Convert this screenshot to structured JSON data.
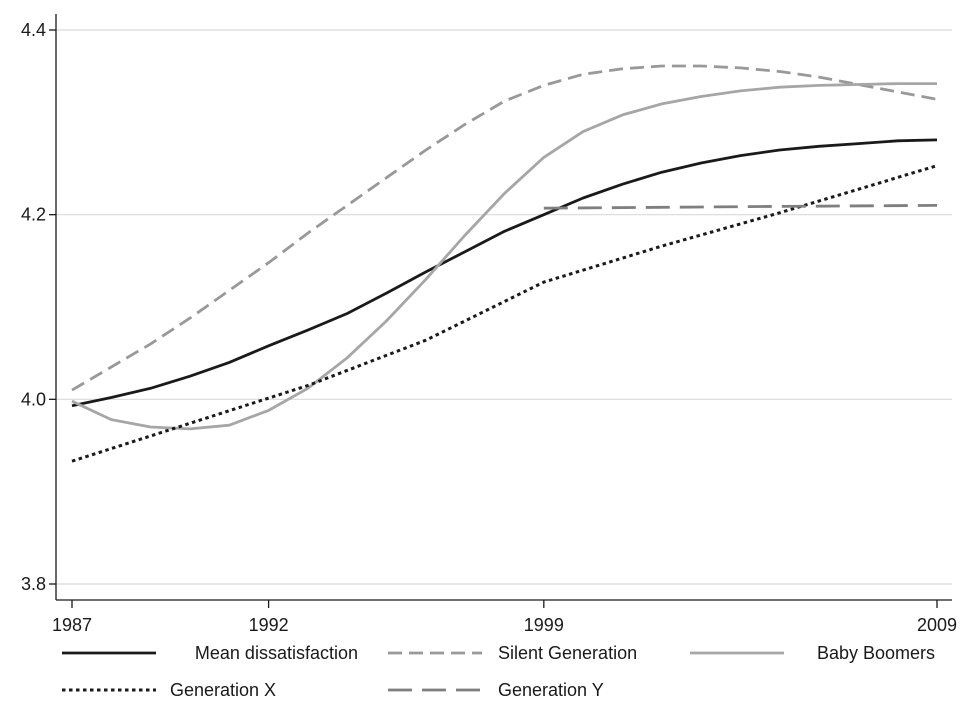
{
  "chart_data": {
    "type": "line",
    "title": "",
    "xlabel": "",
    "ylabel": "",
    "xlim": [
      1987,
      2009
    ],
    "ylim": [
      3.78,
      4.42
    ],
    "x_ticks": [
      {
        "value": 1987,
        "label": "1987"
      },
      {
        "value": 1992,
        "label": "1992"
      },
      {
        "value": 1999,
        "label": "1999"
      },
      {
        "value": 2009,
        "label": "2009"
      }
    ],
    "y_ticks": [
      {
        "value": 3.8,
        "label": "3.8"
      },
      {
        "value": 4.0,
        "label": "4.0"
      },
      {
        "value": 4.2,
        "label": "4.2"
      },
      {
        "value": 4.4,
        "label": "4.4"
      }
    ],
    "grid": "horizontal",
    "legend_position": "bottom",
    "series": [
      {
        "name": "Mean dissatisfaction",
        "color": "#1a1a1a",
        "style": "solid",
        "x": [
          1987,
          1988,
          1989,
          1990,
          1991,
          1992,
          1993,
          1994,
          1995,
          1996,
          1997,
          1998,
          1999,
          2000,
          2001,
          2002,
          2003,
          2004,
          2005,
          2006,
          2007,
          2008,
          2009
        ],
        "y": [
          3.993,
          4.002,
          4.012,
          4.025,
          4.04,
          4.058,
          4.075,
          4.093,
          4.115,
          4.138,
          4.16,
          4.182,
          4.2,
          4.218,
          4.233,
          4.246,
          4.256,
          4.264,
          4.27,
          4.274,
          4.277,
          4.28,
          4.281
        ]
      },
      {
        "name": "Silent Generation",
        "color": "#999999",
        "style": "dash",
        "x": [
          1987,
          1988,
          1989,
          1990,
          1991,
          1992,
          1993,
          1994,
          1995,
          1996,
          1997,
          1998,
          1999,
          2000,
          2001,
          2002,
          2003,
          2004,
          2005,
          2006,
          2007,
          2008,
          2009
        ],
        "y": [
          4.01,
          4.035,
          4.06,
          4.088,
          4.118,
          4.148,
          4.18,
          4.21,
          4.24,
          4.27,
          4.298,
          4.323,
          4.34,
          4.352,
          4.358,
          4.361,
          4.361,
          4.359,
          4.355,
          4.349,
          4.341,
          4.333,
          4.325
        ]
      },
      {
        "name": "Baby Boomers",
        "color": "#a6a6a6",
        "style": "solid",
        "x": [
          1987,
          1988,
          1989,
          1990,
          1991,
          1992,
          1993,
          1994,
          1995,
          1996,
          1997,
          1998,
          1999,
          2000,
          2001,
          2002,
          2003,
          2004,
          2005,
          2006,
          2007,
          2008,
          2009
        ],
        "y": [
          3.998,
          3.978,
          3.97,
          3.968,
          3.972,
          3.988,
          4.012,
          4.045,
          4.085,
          4.13,
          4.178,
          4.223,
          4.262,
          4.29,
          4.308,
          4.32,
          4.328,
          4.334,
          4.338,
          4.34,
          4.341,
          4.342,
          4.342
        ]
      },
      {
        "name": "Generation X",
        "color": "#1a1a1a",
        "style": "dot",
        "x": [
          1987,
          1990,
          1993,
          1996,
          1999,
          2002,
          2005,
          2009
        ],
        "y": [
          3.933,
          3.974,
          4.015,
          4.064,
          4.127,
          4.166,
          4.202,
          4.253
        ]
      },
      {
        "name": "Generation Y",
        "color": "#7f7f7f",
        "style": "longdash",
        "x": [
          1999,
          2002,
          2005,
          2009
        ],
        "y": [
          4.207,
          4.208,
          4.209,
          4.21
        ]
      }
    ]
  }
}
